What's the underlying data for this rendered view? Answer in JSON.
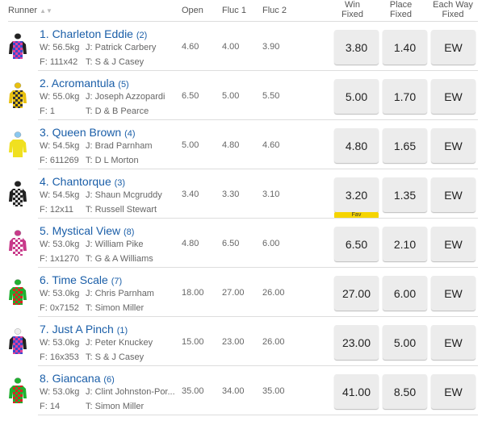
{
  "header": {
    "runner": "Runner",
    "open": "Open",
    "fluc1": "Fluc 1",
    "fluc2": "Fluc 2",
    "win": [
      "Win",
      "Fixed"
    ],
    "place": [
      "Place",
      "Fixed"
    ],
    "ew": [
      "Each Way",
      "Fixed"
    ]
  },
  "fav_label": "Fav",
  "runners": [
    {
      "name": "1. Charleton Eddie",
      "barrier": "(2)",
      "weight": "W: 56.5kg",
      "jockey": "J: Patrick Carbery",
      "form": "F: 111x42",
      "trainer": "T: S & J Casey",
      "open": "4.60",
      "fluc1": "4.00",
      "fluc2": "3.90",
      "win": "3.80",
      "place": "1.40",
      "ew": "EW",
      "silk": {
        "body": "#e0409a",
        "alt": "#3a4bd0",
        "sleeve": "#222",
        "cap": "#222"
      }
    },
    {
      "name": "2. Acromantula",
      "barrier": "(5)",
      "weight": "W: 55.0kg",
      "jockey": "J: Joseph Azzopardi",
      "form": "F: 1",
      "trainer": "T: D & B Pearce",
      "open": "6.50",
      "fluc1": "5.00",
      "fluc2": "5.50",
      "win": "5.00",
      "place": "1.70",
      "ew": "EW",
      "silk": {
        "body": "#e8c010",
        "alt": "#333",
        "sleeve": "#e8c010",
        "cap": "#e8c010"
      }
    },
    {
      "name": "3. Queen Brown",
      "barrier": "(4)",
      "weight": "W: 54.5kg",
      "jockey": "J: Brad Parnham",
      "form": "F: 611269",
      "trainer": "T: D L Morton",
      "open": "5.00",
      "fluc1": "4.80",
      "fluc2": "4.60",
      "win": "4.80",
      "place": "1.65",
      "ew": "EW",
      "silk": {
        "body": "#f0e020",
        "alt": "#f0e020",
        "sleeve": "#f0e020",
        "cap": "#8ac8f0"
      }
    },
    {
      "name": "4. Chantorque",
      "barrier": "(3)",
      "weight": "W: 54.5kg",
      "jockey": "J: Shaun Mcgruddy",
      "form": "F: 12x11",
      "trainer": "T: Russell Stewart",
      "open": "3.40",
      "fluc1": "3.30",
      "fluc2": "3.10",
      "win": "3.20",
      "place": "1.35",
      "ew": "EW",
      "fav": true,
      "silk": {
        "body": "#222",
        "alt": "#ddd",
        "sleeve": "#222",
        "cap": "#222"
      }
    },
    {
      "name": "5. Mystical View",
      "barrier": "(8)",
      "weight": "W: 53.0kg",
      "jockey": "J: William Pike",
      "form": "F: 1x1270",
      "trainer": "T: G & A Williams",
      "open": "4.80",
      "fluc1": "6.50",
      "fluc2": "6.00",
      "win": "6.50",
      "place": "2.10",
      "ew": "EW",
      "silk": {
        "body": "#c83a8a",
        "alt": "#fff",
        "sleeve": "#c83a8a",
        "cap": "#c83a8a"
      }
    },
    {
      "name": "6. Time Scale",
      "barrier": "(7)",
      "weight": "W: 53.0kg",
      "jockey": "J: Chris Parnham",
      "form": "F: 0x7152",
      "trainer": "T: Simon Miller",
      "open": "18.00",
      "fluc1": "27.00",
      "fluc2": "26.00",
      "win": "27.00",
      "place": "6.00",
      "ew": "EW",
      "silk": {
        "body": "#20b030",
        "alt": "#e02020",
        "sleeve": "#20b030",
        "cap": "#20b030"
      }
    },
    {
      "name": "7. Just A Pinch",
      "barrier": "(1)",
      "weight": "W: 53.0kg",
      "jockey": "J: Peter Knuckey",
      "form": "F: 16x353",
      "trainer": "T: S & J Casey",
      "open": "15.00",
      "fluc1": "23.00",
      "fluc2": "26.00",
      "win": "23.00",
      "place": "5.00",
      "ew": "EW",
      "silk": {
        "body": "#3a4bd0",
        "alt": "#e0409a",
        "sleeve": "#222",
        "cap": "#eee"
      }
    },
    {
      "name": "8. Giancana",
      "barrier": "(6)",
      "weight": "W: 53.0kg",
      "jockey": "J: Clint Johnston-Por...",
      "form": "F: 14",
      "trainer": "T: Simon Miller",
      "open": "35.00",
      "fluc1": "34.00",
      "fluc2": "35.00",
      "win": "41.00",
      "place": "8.50",
      "ew": "EW",
      "silk": {
        "body": "#20b030",
        "alt": "#e02020",
        "sleeve": "#20b030",
        "cap": "#20b030"
      }
    }
  ]
}
